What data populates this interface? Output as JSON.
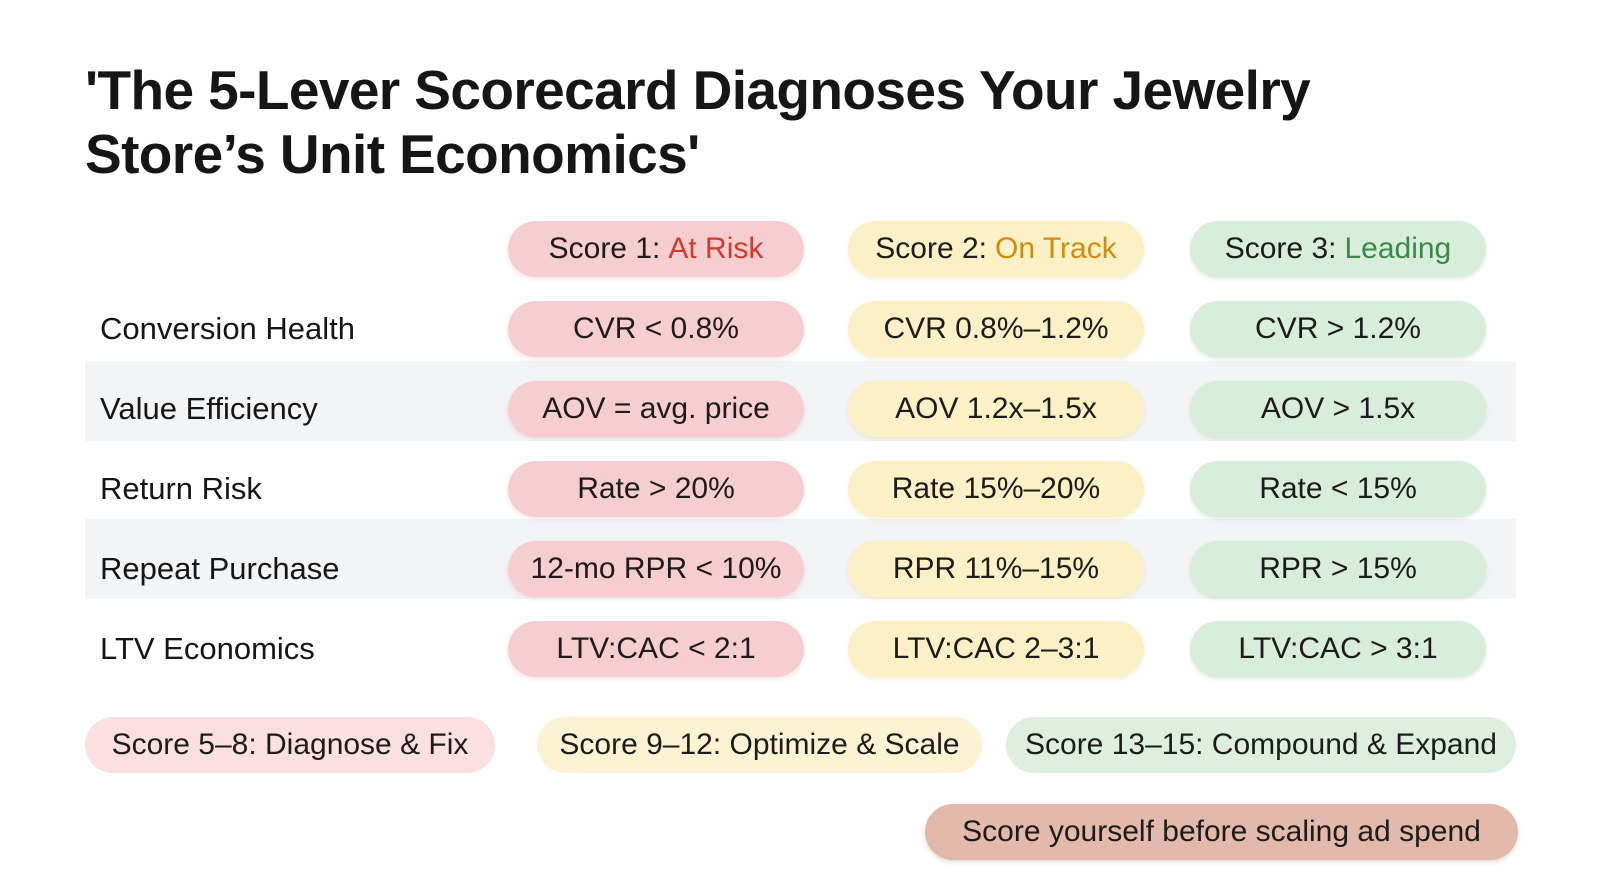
{
  "title": "'The 5-Lever Scorecard Diagnoses Your Jewelry Store’s Unit Economics'",
  "columns": [
    {
      "prefix": "Score 1:",
      "status": "At Risk",
      "status_color": "#d33a2c",
      "fill_color": "#f6cdd0"
    },
    {
      "prefix": "Score 2:",
      "status": "On Track",
      "status_color": "#d08c0a",
      "fill_color": "#fbf0c6"
    },
    {
      "prefix": "Score 3:",
      "status": "Leading",
      "status_color": "#3a8a46",
      "fill_color": "#d8eddb"
    }
  ],
  "rows": [
    {
      "lever": "Conversion Health",
      "cells": [
        "CVR < 0.8%",
        "CVR 0.8%–1.2%",
        "CVR > 1.2%"
      ]
    },
    {
      "lever": "Value Efficiency",
      "cells": [
        "AOV = avg. price",
        "AOV 1.2x–1.5x",
        "AOV > 1.5x"
      ]
    },
    {
      "lever": "Return Risk",
      "cells": [
        "Rate > 20%",
        "Rate 15%–20%",
        "Rate < 15%"
      ]
    },
    {
      "lever": "Repeat Purchase",
      "cells": [
        "12-mo RPR < 10%",
        "RPR 11%–15%",
        "RPR > 15%"
      ]
    },
    {
      "lever": "LTV Economics",
      "cells": [
        "LTV:CAC < 2:1",
        "LTV:CAC 2–3:1",
        "LTV:CAC > 3:1"
      ]
    }
  ],
  "bands": [
    "Score 5–8: Diagnose & Fix",
    "Score 9–12: Optimize & Scale",
    "Score 13–15: Compound & Expand"
  ],
  "cta": "Score yourself before scaling ad spend"
}
